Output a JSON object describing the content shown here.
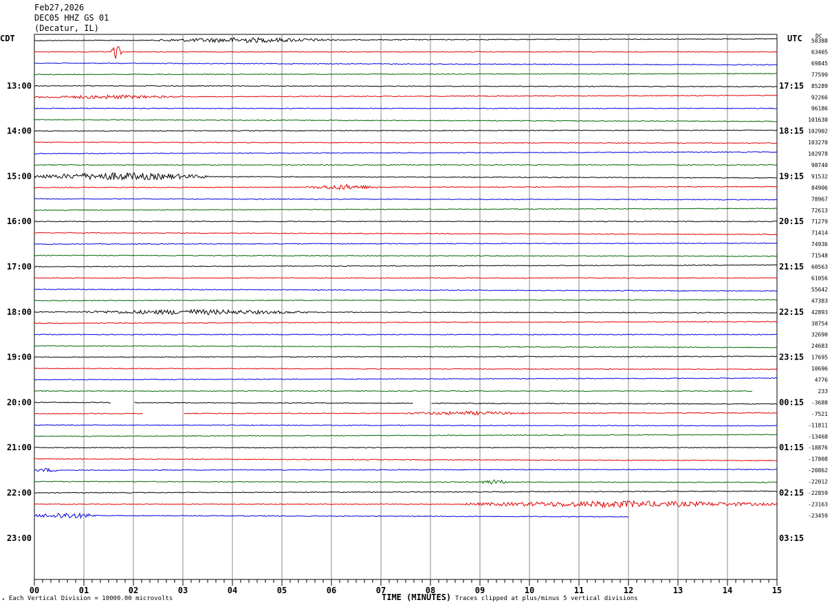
{
  "header": {
    "date": "Feb27,2026",
    "station": "DEC05 HHZ GS 01",
    "location": "(Decatur, IL)"
  },
  "left_tz": "CDT",
  "right_tz": "UTC",
  "dc_label": "DC",
  "footer": {
    "left": "Each Vertical Division = 10000.00 microvolts",
    "center": "TIME (MINUTES)",
    "right": "Traces clipped at plus/minus 5 vertical divisions"
  },
  "colors": {
    "trace": [
      "#000000",
      "#e00000",
      "#0000dd",
      "#006600"
    ],
    "grid": "#888888"
  },
  "chart_data": {
    "type": "line",
    "title": "",
    "xlabel": "TIME (MINUTES)",
    "xlim": [
      0,
      15
    ],
    "x_ticks": [
      "00",
      "01",
      "02",
      "03",
      "04",
      "05",
      "06",
      "07",
      "08",
      "09",
      "10",
      "11",
      "12",
      "13",
      "14",
      "15"
    ],
    "left_hour_labels": [
      "13:00",
      "14:00",
      "15:00",
      "16:00",
      "17:00",
      "18:00",
      "19:00",
      "20:00",
      "21:00",
      "22:00",
      "23:00"
    ],
    "right_hour_labels": [
      "17:15",
      "18:15",
      "19:15",
      "20:15",
      "21:15",
      "22:15",
      "23:15",
      "00:15",
      "01:15",
      "02:15",
      "03:15"
    ],
    "traces_per_hour": 4,
    "minutes_per_trace": 15,
    "first_trace_offset": 4,
    "dc_offsets": [
      "58388",
      "63405",
      "69845",
      "77599",
      "85289",
      "92266",
      "96186",
      "101630",
      "102902",
      "103270",
      "102978",
      "98740",
      "91532",
      "84906",
      "78967",
      "72613",
      "71279",
      "71414",
      "74936",
      "71548",
      "60563",
      "61056",
      "55642",
      "47383",
      "42893",
      "38754",
      "32690",
      "24683",
      "17695",
      "10696",
      "4776",
      "233",
      "-3688",
      "-7521",
      "-11811",
      "-13468",
      "-18876",
      "-17808",
      "-20862",
      "-22012",
      "-22859",
      "-23163",
      "-23459"
    ],
    "trace_ends": [
      15,
      15,
      15,
      15,
      15,
      15,
      15,
      15,
      15,
      15,
      15,
      15,
      15,
      15,
      15,
      15,
      15,
      15,
      15,
      15,
      15,
      15,
      15,
      15,
      15,
      15,
      15,
      15,
      15,
      15,
      15,
      14.5,
      15,
      15,
      15,
      15,
      15,
      15,
      15,
      15,
      15,
      15,
      12
    ],
    "events": [
      {
        "trace": 0,
        "start": 2.5,
        "end": 6.0,
        "amp": 4
      },
      {
        "trace": 1,
        "start": 1.55,
        "end": 1.75,
        "amp": 12
      },
      {
        "trace": 5,
        "start": 0.0,
        "end": 3.0,
        "amp": 3
      },
      {
        "trace": 12,
        "start": 0.0,
        "end": 3.5,
        "amp": 6
      },
      {
        "trace": 13,
        "start": 5.5,
        "end": 7.0,
        "amp": 4
      },
      {
        "trace": 24,
        "start": 1.0,
        "end": 5.5,
        "amp": 4
      },
      {
        "trace": 33,
        "start": 7.5,
        "end": 10.0,
        "amp": 3
      },
      {
        "trace": 38,
        "start": 0.0,
        "end": 0.5,
        "amp": 3
      },
      {
        "trace": 39,
        "start": 9.0,
        "end": 9.6,
        "amp": 4
      },
      {
        "trace": 41,
        "start": 8.7,
        "end": 15.0,
        "amp": 5
      },
      {
        "trace": 42,
        "start": 0.0,
        "end": 1.3,
        "amp": 5
      }
    ],
    "gaps": [
      {
        "trace": 32,
        "start": 1.55,
        "end": 2.0
      },
      {
        "trace": 32,
        "start": 7.65,
        "end": 8.0
      },
      {
        "trace": 33,
        "start": 2.2,
        "end": 3.0
      }
    ],
    "grid": true
  }
}
